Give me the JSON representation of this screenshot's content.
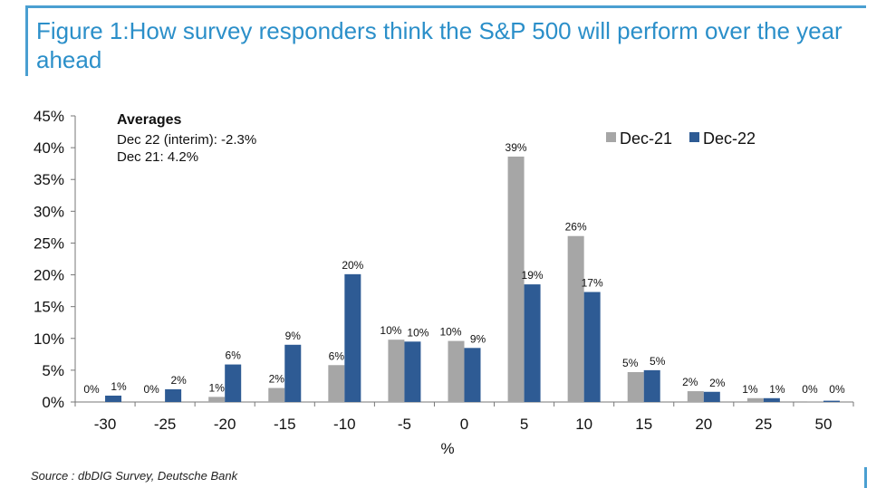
{
  "figure": {
    "title": "Figure 1:How survey responders think the S&P 500 will perform over the year ahead",
    "source": "Source : dbDIG Survey, Deutsche Bank"
  },
  "colors": {
    "title": "#2b8fc9",
    "frame": "#4a9fd1",
    "dec21": "#a6a6a6",
    "dec22": "#2e5b94"
  },
  "chart_data": {
    "type": "bar",
    "title": "",
    "xlabel": "%",
    "ylabel": "",
    "ylim": [
      0,
      45
    ],
    "yticks": [
      "0%",
      "5%",
      "10%",
      "15%",
      "20%",
      "25%",
      "30%",
      "35%",
      "40%",
      "45%"
    ],
    "grid": false,
    "legend_position": "top-right",
    "categories": [
      "-30",
      "-25",
      "-20",
      "-15",
      "-10",
      "-5",
      "0",
      "5",
      "10",
      "15",
      "20",
      "25",
      "50"
    ],
    "series": [
      {
        "name": "Dec-21",
        "values": [
          0,
          0,
          0.8,
          2.2,
          5.8,
          9.8,
          9.6,
          38.6,
          26.1,
          4.7,
          1.7,
          0.6,
          0.1
        ],
        "labels": [
          "0%",
          "0%",
          "1%",
          "2%",
          "6%",
          "10%",
          "10%",
          "39%",
          "26%",
          "5%",
          "2%",
          "1%",
          "0%"
        ]
      },
      {
        "name": "Dec-22",
        "values": [
          1.0,
          2.0,
          5.9,
          9.0,
          20.1,
          9.5,
          8.5,
          18.5,
          17.3,
          5.0,
          1.6,
          0.6,
          0.2
        ],
        "labels": [
          "1%",
          "2%",
          "6%",
          "9%",
          "20%",
          "10%",
          "9%",
          "19%",
          "17%",
          "5%",
          "2%",
          "1%",
          "0%"
        ]
      }
    ],
    "annotation": {
      "heading": "Averages",
      "lines": [
        "Dec 22 (interim): -2.3%",
        "Dec 21: 4.2%"
      ]
    }
  }
}
